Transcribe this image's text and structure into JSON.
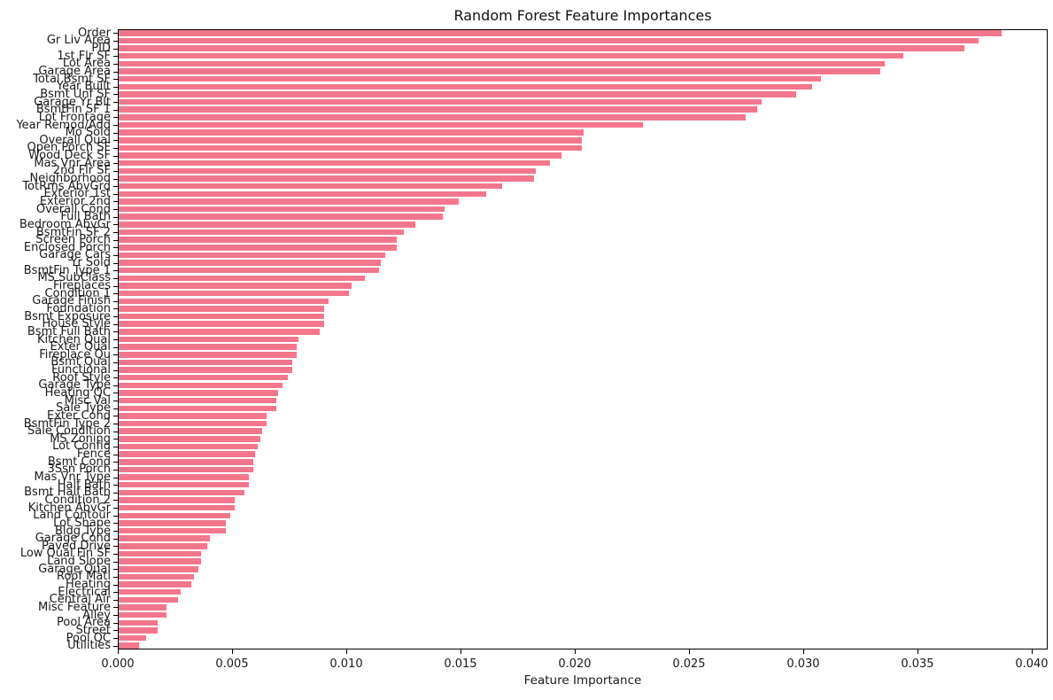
{
  "chart_data": {
    "type": "bar",
    "orientation": "horizontal",
    "title": "Random Forest Feature Importances",
    "xlabel": "Feature Importance",
    "ylabel": "",
    "xlim": [
      0,
      0.0407
    ],
    "grid": false,
    "legend": "none",
    "bar_color": "#f3778c",
    "x_tick_labels": [
      "0.000",
      "0.005",
      "0.010",
      "0.015",
      "0.020",
      "0.025",
      "0.030",
      "0.035",
      "0.040"
    ],
    "x_ticks": [
      0.0,
      0.005,
      0.01,
      0.015,
      0.02,
      0.025,
      0.03,
      0.035,
      0.04
    ],
    "categories": [
      "Order",
      "Gr Liv Area",
      "PID",
      "1st Flr SF",
      "Lot Area",
      "Garage Area",
      "Total Bsmt SF",
      "Year Built",
      "Bsmt Unf SF",
      "Garage Yr Blt",
      "BsmtFin SF 1",
      "Lot Frontage",
      "Year Remod/Add",
      "Mo Sold",
      "Overall Qual",
      "Open Porch SF",
      "Wood Deck SF",
      "Mas Vnr Area",
      "2nd Flr SF",
      "Neighborhood",
      "TotRms AbvGrd",
      "Exterior 1st",
      "Exterior 2nd",
      "Overall Cond",
      "Full Bath",
      "Bedroom AbvGr",
      "BsmtFin SF 2",
      "Screen Porch",
      "Enclosed Porch",
      "Garage Cars",
      "Yr Sold",
      "BsmtFin Type 1",
      "MS SubClass",
      "Fireplaces",
      "Condition 1",
      "Garage Finish",
      "Foundation",
      "Bsmt Exposure",
      "House Style",
      "Bsmt Full Bath",
      "Kitchen Qual",
      "Exter Qual",
      "Fireplace Qu",
      "Bsmt Qual",
      "Functional",
      "Roof Style",
      "Garage Type",
      "Heating QC",
      "Misc Val",
      "Sale Type",
      "Exter Cond",
      "BsmtFin Type 2",
      "Sale Condition",
      "MS Zoning",
      "Lot Config",
      "Fence",
      "Bsmt Cond",
      "3Ssn Porch",
      "Mas Vnr Type",
      "Half Bath",
      "Bsmt Half Bath",
      "Condition 2",
      "Kitchen AbvGr",
      "Land Contour",
      "Lot Shape",
      "Bldg Type",
      "Garage Cond",
      "Paved Drive",
      "Low Qual Fin SF",
      "Land Slope",
      "Garage Qual",
      "Roof Matl",
      "Heating",
      "Electrical",
      "Central Air",
      "Misc Feature",
      "Alley",
      "Pool Area",
      "Street",
      "Pool QC",
      "Utilities"
    ],
    "values": [
      0.0387,
      0.0377,
      0.0371,
      0.0344,
      0.0336,
      0.0334,
      0.0308,
      0.0304,
      0.0297,
      0.0282,
      0.028,
      0.0275,
      0.023,
      0.0204,
      0.0203,
      0.0203,
      0.0194,
      0.0189,
      0.0183,
      0.0182,
      0.0168,
      0.0161,
      0.0149,
      0.0143,
      0.0142,
      0.013,
      0.0125,
      0.0122,
      0.0122,
      0.0117,
      0.0115,
      0.0114,
      0.0108,
      0.0102,
      0.0101,
      0.0092,
      0.009,
      0.009,
      0.009,
      0.0088,
      0.0079,
      0.0078,
      0.0078,
      0.0076,
      0.0076,
      0.0074,
      0.0072,
      0.007,
      0.0069,
      0.0069,
      0.0065,
      0.0065,
      0.0063,
      0.0062,
      0.0061,
      0.006,
      0.0059,
      0.0059,
      0.0057,
      0.0057,
      0.0055,
      0.0051,
      0.0051,
      0.0049,
      0.0047,
      0.0047,
      0.004,
      0.0039,
      0.0036,
      0.0036,
      0.0035,
      0.0033,
      0.0032,
      0.0027,
      0.0026,
      0.0021,
      0.0021,
      0.0017,
      0.0017,
      0.0012,
      0.0009
    ]
  }
}
